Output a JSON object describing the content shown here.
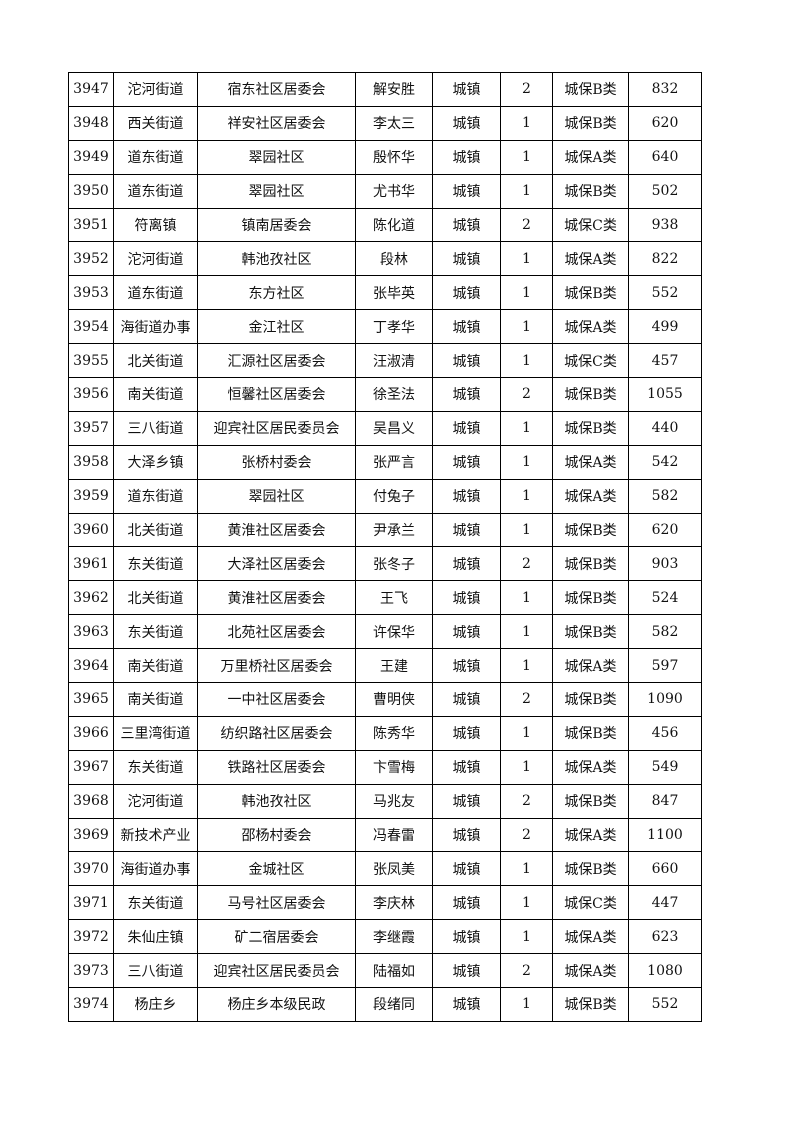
{
  "table": {
    "rows": [
      [
        3947,
        "沱河街道",
        "宿东社区居委会",
        "解安胜",
        "城镇",
        2,
        "城保B类",
        832
      ],
      [
        3948,
        "西关街道",
        "祥安社区居委会",
        "李太三",
        "城镇",
        1,
        "城保B类",
        620
      ],
      [
        3949,
        "道东街道",
        "翠园社区",
        "殷怀华",
        "城镇",
        1,
        "城保A类",
        640
      ],
      [
        3950,
        "道东街道",
        "翠园社区",
        "尤书华",
        "城镇",
        1,
        "城保B类",
        502
      ],
      [
        3951,
        "符离镇",
        "镇南居委会",
        "陈化道",
        "城镇",
        2,
        "城保C类",
        938
      ],
      [
        3952,
        "沱河街道",
        "韩池孜社区",
        "段林",
        "城镇",
        1,
        "城保A类",
        822
      ],
      [
        3953,
        "道东街道",
        "东方社区",
        "张毕英",
        "城镇",
        1,
        "城保B类",
        552
      ],
      [
        3954,
        "海街道办事",
        "金江社区",
        "丁孝华",
        "城镇",
        1,
        "城保A类",
        499
      ],
      [
        3955,
        "北关街道",
        "汇源社区居委会",
        "汪淑清",
        "城镇",
        1,
        "城保C类",
        457
      ],
      [
        3956,
        "南关街道",
        "恒馨社区居委会",
        "徐圣法",
        "城镇",
        2,
        "城保B类",
        1055
      ],
      [
        3957,
        "三八街道",
        "迎宾社区居民委员会",
        "吴昌义",
        "城镇",
        1,
        "城保B类",
        440
      ],
      [
        3958,
        "大泽乡镇",
        "张桥村委会",
        "张严言",
        "城镇",
        1,
        "城保A类",
        542
      ],
      [
        3959,
        "道东街道",
        "翠园社区",
        "付兔子",
        "城镇",
        1,
        "城保A类",
        582
      ],
      [
        3960,
        "北关街道",
        "黄淮社区居委会",
        "尹承兰",
        "城镇",
        1,
        "城保B类",
        620
      ],
      [
        3961,
        "东关街道",
        "大泽社区居委会",
        "张冬子",
        "城镇",
        2,
        "城保B类",
        903
      ],
      [
        3962,
        "北关街道",
        "黄淮社区居委会",
        "王飞",
        "城镇",
        1,
        "城保B类",
        524
      ],
      [
        3963,
        "东关街道",
        "北苑社区居委会",
        "许保华",
        "城镇",
        1,
        "城保B类",
        582
      ],
      [
        3964,
        "南关街道",
        "万里桥社区居委会",
        "王建",
        "城镇",
        1,
        "城保A类",
        597
      ],
      [
        3965,
        "南关街道",
        "一中社区居委会",
        "曹明侠",
        "城镇",
        2,
        "城保B类",
        1090
      ],
      [
        3966,
        "三里湾街道",
        "纺织路社区居委会",
        "陈秀华",
        "城镇",
        1,
        "城保B类",
        456
      ],
      [
        3967,
        "东关街道",
        "铁路社区居委会",
        "卞雪梅",
        "城镇",
        1,
        "城保A类",
        549
      ],
      [
        3968,
        "沱河街道",
        "韩池孜社区",
        "马兆友",
        "城镇",
        2,
        "城保B类",
        847
      ],
      [
        3969,
        "新技术产业",
        "邵杨村委会",
        "冯春雷",
        "城镇",
        2,
        "城保A类",
        1100
      ],
      [
        3970,
        "海街道办事",
        "金城社区",
        "张凤美",
        "城镇",
        1,
        "城保B类",
        660
      ],
      [
        3971,
        "东关街道",
        "马号社区居委会",
        "李庆林",
        "城镇",
        1,
        "城保C类",
        447
      ],
      [
        3972,
        "朱仙庄镇",
        "矿二宿居委会",
        "李继霞",
        "城镇",
        1,
        "城保A类",
        623
      ],
      [
        3973,
        "三八街道",
        "迎宾社区居民委员会",
        "陆福如",
        "城镇",
        2,
        "城保A类",
        1080
      ],
      [
        3974,
        "杨庄乡",
        "杨庄乡本级民政",
        "段绪同",
        "城镇",
        1,
        "城保B类",
        552
      ]
    ]
  }
}
